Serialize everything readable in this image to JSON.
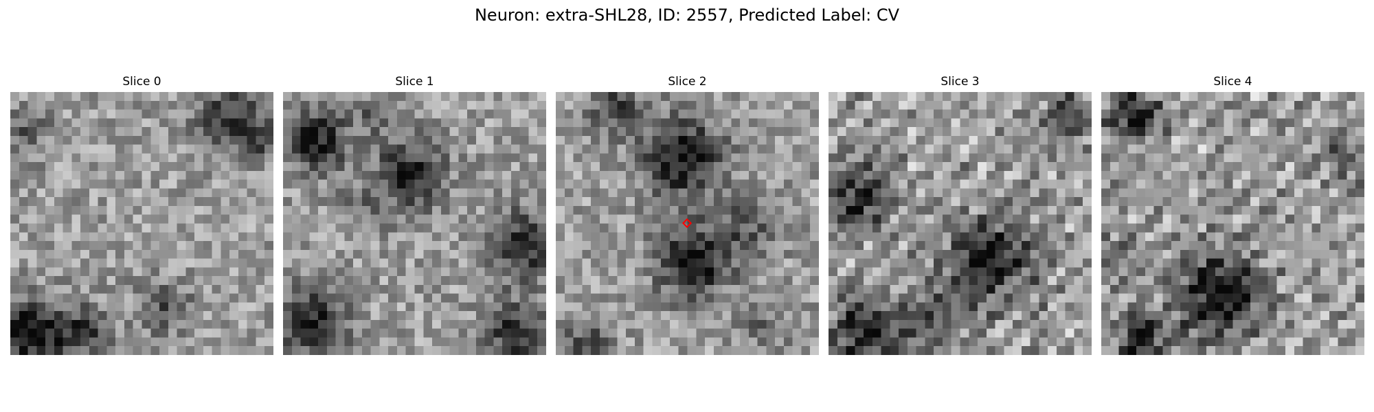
{
  "figure": {
    "title": "Neuron: extra-SHL28, ID: 2557, Predicted Label: CV"
  },
  "slices": [
    {
      "title": "Slice 0",
      "icon": "grayscale-em-image-slice"
    },
    {
      "title": "Slice 1",
      "icon": "grayscale-em-image-slice"
    },
    {
      "title": "Slice 2",
      "icon": "grayscale-em-image-slice",
      "marker": "red-diamond-marker"
    },
    {
      "title": "Slice 3",
      "icon": "grayscale-em-image-slice"
    },
    {
      "title": "Slice 4",
      "icon": "grayscale-em-image-slice"
    }
  ],
  "colors": {
    "marker": "#ff0000",
    "colormap": "gray"
  }
}
